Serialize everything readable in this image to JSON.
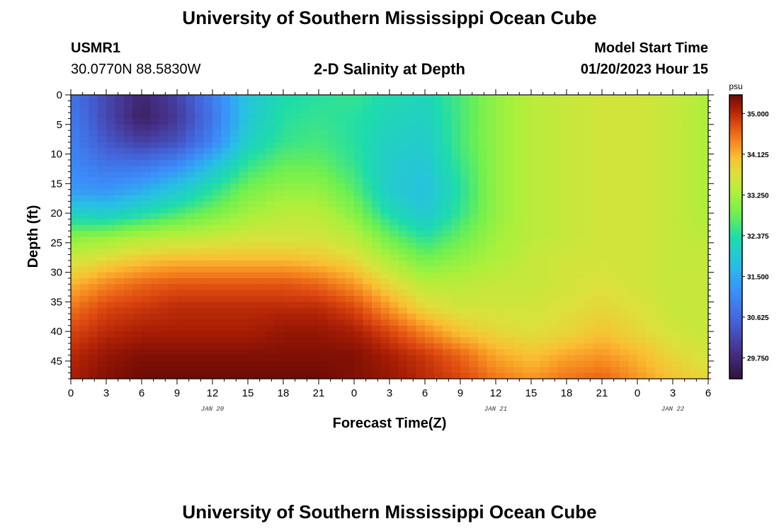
{
  "page": {
    "title": "University of Southern Mississippi Ocean Cube",
    "footer_title": "University of Southern Mississippi Ocean Cube"
  },
  "header": {
    "station": "USMR1",
    "coords": "30.0770N  88.5830W",
    "plot_title": "2-D Salinity at Depth",
    "model_label": "Model Start Time",
    "model_time": "01/20/2023 Hour 15"
  },
  "chart_data": {
    "type": "heatmap",
    "title": "2-D Salinity at Depth",
    "xlabel": "Forecast Time(Z)",
    "ylabel": "Depth (ft)",
    "x_unit": "hours since 01/20/2023 00Z",
    "xlim": [
      0,
      54
    ],
    "ylim": [
      48,
      0
    ],
    "x_ticks": [
      0,
      3,
      6,
      9,
      12,
      15,
      18,
      21,
      24,
      27,
      30,
      33,
      36,
      39,
      42,
      45,
      48,
      51,
      54
    ],
    "x_tick_labels": [
      "0",
      "3",
      "6",
      "9",
      "12",
      "15",
      "18",
      "21",
      "0",
      "3",
      "6",
      "9",
      "12",
      "15",
      "18",
      "21",
      "0",
      "3",
      "6"
    ],
    "y_ticks": [
      0,
      5,
      10,
      15,
      20,
      25,
      30,
      35,
      40,
      45
    ],
    "date_labels": [
      {
        "x": 12,
        "text": "JAN 20"
      },
      {
        "x": 36,
        "text": "JAN 21"
      },
      {
        "x": 51,
        "text": "JAN 22"
      }
    ],
    "colorbar": {
      "unit": "psu",
      "min": 29.3,
      "max": 35.4,
      "ticks": [
        35.0,
        34.125,
        33.25,
        32.375,
        31.5,
        30.625,
        29.75
      ],
      "tick_labels": [
        "35.000",
        "34.125",
        "33.250",
        "32.375",
        "31.500",
        "30.625",
        "29.750"
      ]
    },
    "grid": false,
    "grid_x_hours": [
      0,
      3,
      6,
      9,
      12,
      15,
      18,
      21,
      24,
      27,
      30,
      33,
      36,
      39,
      42,
      45,
      48,
      51,
      54
    ],
    "grid_depths_ft": [
      0,
      4,
      8,
      12,
      16,
      20,
      24,
      28,
      32,
      36,
      40,
      44,
      48
    ],
    "salinity_psu": [
      [
        30.8,
        30.2,
        29.7,
        30.1,
        30.9,
        31.9,
        32.3,
        32.4,
        32.5,
        32.3,
        32.2,
        32.6,
        33.1,
        33.4,
        33.5,
        33.6,
        33.6,
        33.5,
        33.3
      ],
      [
        30.9,
        30.2,
        29.6,
        30.0,
        30.8,
        31.9,
        32.4,
        32.5,
        32.4,
        32.2,
        32.1,
        32.6,
        33.1,
        33.4,
        33.5,
        33.6,
        33.6,
        33.5,
        33.3
      ],
      [
        31.0,
        30.4,
        30.1,
        30.3,
        31.0,
        32.1,
        32.5,
        32.6,
        32.4,
        32.1,
        32.0,
        32.6,
        33.1,
        33.4,
        33.5,
        33.6,
        33.6,
        33.5,
        33.3
      ],
      [
        31.1,
        30.8,
        30.8,
        31.1,
        31.8,
        32.5,
        32.8,
        32.8,
        32.5,
        32.0,
        31.9,
        32.5,
        33.1,
        33.4,
        33.5,
        33.6,
        33.6,
        33.5,
        33.3
      ],
      [
        31.3,
        31.2,
        31.5,
        31.9,
        32.4,
        32.9,
        33.1,
        33.1,
        32.7,
        32.0,
        31.8,
        32.4,
        33.1,
        33.4,
        33.5,
        33.6,
        33.6,
        33.5,
        33.3
      ],
      [
        32.1,
        32.0,
        32.3,
        32.6,
        32.9,
        33.2,
        33.4,
        33.4,
        33.0,
        32.3,
        31.9,
        32.5,
        33.1,
        33.4,
        33.5,
        33.6,
        33.6,
        33.5,
        33.3
      ],
      [
        33.0,
        33.1,
        33.3,
        33.4,
        33.5,
        33.6,
        33.6,
        33.6,
        33.4,
        32.8,
        32.4,
        32.8,
        33.2,
        33.4,
        33.5,
        33.6,
        33.6,
        33.5,
        33.4
      ],
      [
        33.6,
        33.8,
        34.0,
        34.1,
        34.1,
        34.1,
        34.1,
        34.0,
        33.8,
        33.3,
        32.9,
        33.1,
        33.3,
        33.5,
        33.6,
        33.6,
        33.6,
        33.5,
        33.5
      ],
      [
        34.1,
        34.4,
        34.6,
        34.7,
        34.7,
        34.7,
        34.7,
        34.6,
        34.3,
        33.8,
        33.4,
        33.4,
        33.5,
        33.5,
        33.6,
        33.7,
        33.6,
        33.5,
        33.5
      ],
      [
        34.5,
        34.8,
        34.9,
        35.0,
        35.0,
        35.0,
        35.0,
        35.0,
        34.8,
        34.3,
        33.8,
        33.6,
        33.6,
        33.6,
        33.7,
        33.8,
        33.7,
        33.5,
        33.5
      ],
      [
        34.8,
        35.0,
        35.1,
        35.1,
        35.1,
        35.1,
        35.2,
        35.2,
        35.1,
        34.8,
        34.4,
        34.0,
        33.8,
        33.7,
        33.8,
        34.0,
        33.8,
        33.6,
        33.5
      ],
      [
        35.0,
        35.2,
        35.3,
        35.3,
        35.3,
        35.3,
        35.3,
        35.3,
        35.3,
        35.1,
        34.9,
        34.6,
        34.2,
        34.0,
        34.2,
        34.3,
        34.1,
        33.8,
        33.6
      ],
      [
        35.1,
        35.3,
        35.4,
        35.4,
        35.4,
        35.4,
        35.4,
        35.4,
        35.3,
        35.2,
        35.0,
        34.8,
        34.5,
        34.3,
        34.5,
        34.6,
        34.3,
        34.0,
        33.8
      ]
    ]
  }
}
